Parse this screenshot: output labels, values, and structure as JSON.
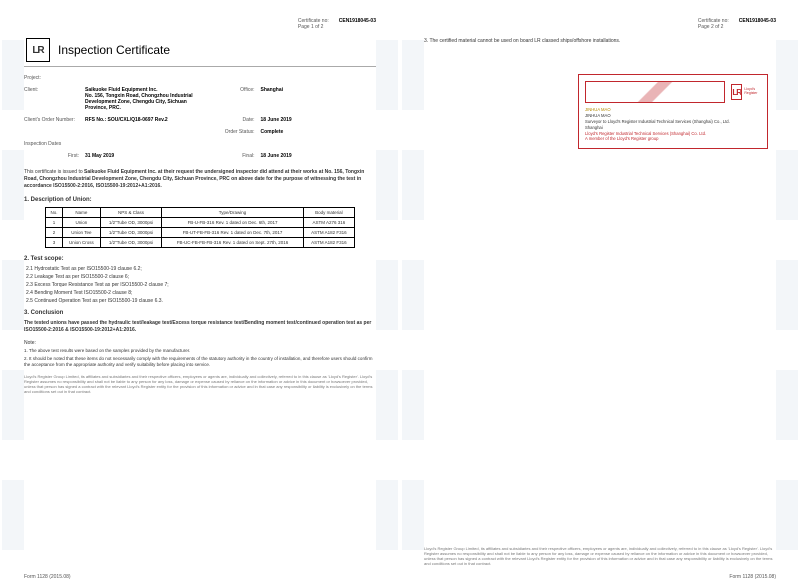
{
  "certificate": {
    "number": "CEN1918045-03",
    "page1_label": "Page 1 of 2",
    "page2_label": "Page 2 of 2",
    "certno_label": "Certificate no:"
  },
  "title": "Inspection Certificate",
  "meta": {
    "project_label": "Project:",
    "project_value": "",
    "client_label": "Client:",
    "client_value": "Saikuoke Fluid Equipment Inc.\nNo. 156, Tongxin Road, Chongzhou Industrial Development Zone, Chengdu City, Sichuan Province, PRC.",
    "office_label": "Office:",
    "office_value": "Shanghai",
    "order_label": "Client's Order Number:",
    "order_value": "RFS No.: SOU/CXL/Q18-0697 Rev.2",
    "date_label": "Date:",
    "date_value": "18 June 2019",
    "status_label": "Order Status:",
    "status_value": "Complete",
    "insp_dates_label": "Inspection Dates",
    "first_label": "First:",
    "first_value": "31 May 2019",
    "final_label": "Final:",
    "final_value": "18 June 2019"
  },
  "intro": "This certificate is issued to Saikuoke Fluid Equipment Inc. at their request the undersigned inspector did attend at their works at No. 156, Tongxin Road, Chongzhou Industrial Development Zone, Chengdu City, Sichuan Province, PRC on above date for the purpose of witnessing the test in accordance ISO15500-2:2016, ISO15500-19:2012+A1:2016.",
  "section1": {
    "head": "1.    Description of Union:",
    "columns": [
      "No.",
      "Name",
      "NPS & Class",
      "Type/Drawing",
      "Body material"
    ],
    "rows": [
      [
        "1",
        "Union",
        "1/2\"Tube OD, 3000psi",
        "FB-U-FB-316 Rev. 1 dated on Dec. 6th, 2017",
        "ASTM A276 316"
      ],
      [
        "2",
        "Union Tee",
        "1/2\"Tube OD, 3000psi",
        "FB-UT-FB-FB-316 Rev. 1 dated on Dec. 7th, 2017",
        "ASTM A182 F316"
      ],
      [
        "3",
        "Union Cross",
        "1/2\"Tube OD, 3000psi",
        "FB-UC-FB-FB-FB-316 Rev. 1 dated on Sept. 27th, 2016",
        "ASTM A182 F316"
      ]
    ]
  },
  "section2": {
    "head": "2.    Test scope:",
    "items": [
      "2.1   Hydrostatic Test as per ISO15500-19 clause 6.2;",
      "2.2   Leakage Test as per ISO15500-2 clause 6;",
      "2.3   Excess Torque Resistance Test as per ISO15500-2 clause 7;",
      "2.4   Bending Moment Test ISO15500-2 clause 8;",
      "2.5   Continued Operation Test as per ISO15500-19 clause 6.3."
    ]
  },
  "section3": {
    "head": "3.    Conclusion",
    "text": "The tested unions have passed the hydraulic test/leakage test/Excess torque resistance test/Bending moment test/continued operation test as per ISO15500-2:2016 & ISO15500-19:2012+A1:2016."
  },
  "notes": {
    "head": "Note:",
    "items": [
      "1.    The above test results were based on the samples provided by the manufacturer.",
      "2.    It should be noted that these items do not necessarily comply with the requirements of the statutory authority in the country of installation, and therefore users should confirm the acceptance from the appropriate authority and verify suitability before placing into service."
    ]
  },
  "fineprint": "Lloyd's Register Group Limited, its affiliates and subsidiaries and their respective officers, employees or agents are, individually and collectively, referred to in this clause as 'Lloyd's Register'. Lloyd's Register assumes no responsibility and shall not be liable to any person for any loss, damage or expense caused by reliance on the information or advice in this document or howsoever provided, unless that person has signed a contract with the relevant Lloyd's Register entity for the provision of this information or advice and in that case any responsibility or liability is exclusively on the terms and conditions set out in that contract.",
  "form_ref": "Form 1128 (2015.08)",
  "page2": {
    "note3": "3.    The certified material cannot be used on board LR classed ships/offshore installations.",
    "sig_name_label": "JINHUA MAO",
    "sig_name": "JINHUA MAO",
    "surveyor_line": "Surveyor to Lloyd's Register Industrial Technical Services (Shanghai) Co., Ltd.",
    "city": "Shanghai",
    "company_line": "Lloyd's Register Industrial Technical Services (Shanghai) Co. Ltd.",
    "member_line": "A member of the Lloyd's Register group",
    "lr_text": "Lloyd's Register"
  }
}
